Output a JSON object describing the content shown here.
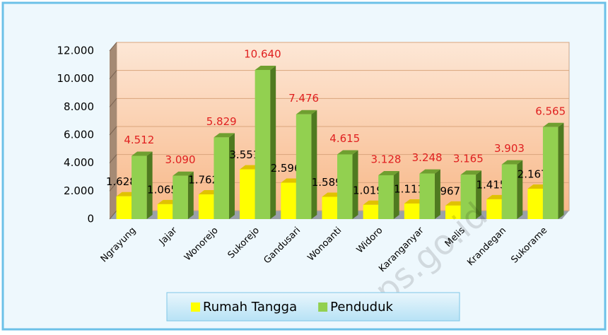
{
  "chart_data": {
    "type": "bar3d",
    "categories": [
      "Ngrayung",
      "Jajar",
      "Wonorejo",
      "Sukorejo",
      "Gandusari",
      "Wonoanti",
      "Widoro",
      "Karanganyar",
      "Melis",
      "Krandegan",
      "Sukorame"
    ],
    "series": [
      {
        "name": "Rumah Tangga",
        "color": "#ffff00",
        "values": [
          1628,
          1065,
          1762,
          3551,
          2596,
          1589,
          1019,
          1111,
          967,
          1415,
          2167
        ],
        "value_labels": [
          "1.628",
          "1.065",
          "1.762",
          "3.551",
          "2.596",
          "1.589",
          "1.019",
          "1.111",
          "967",
          "1.415",
          "2.167"
        ]
      },
      {
        "name": "Penduduk",
        "color": "#92d050",
        "values": [
          4512,
          3090,
          5829,
          10640,
          7476,
          4615,
          3128,
          3248,
          3165,
          3903,
          6565
        ],
        "value_labels": [
          "4.512",
          "3.090",
          "5.829",
          "10.640",
          "7.476",
          "4.615",
          "3.128",
          "3.248",
          "3.165",
          "3.903",
          "6.565"
        ]
      }
    ],
    "ylim": [
      0,
      12000
    ],
    "yticks": [
      0,
      {
        "value": 2000,
        "label": "2.000"
      },
      {
        "value": 4000,
        "label": "4.000"
      },
      {
        "value": 6000,
        "label": "6.000"
      },
      {
        "value": 8000,
        "label": "8.000"
      },
      {
        "value": 10000,
        "label": "10.000"
      },
      {
        "value": 12000,
        "label": "12.000"
      }
    ],
    "grid": true,
    "legend": "bottom",
    "watermark": "bps.go.id"
  }
}
